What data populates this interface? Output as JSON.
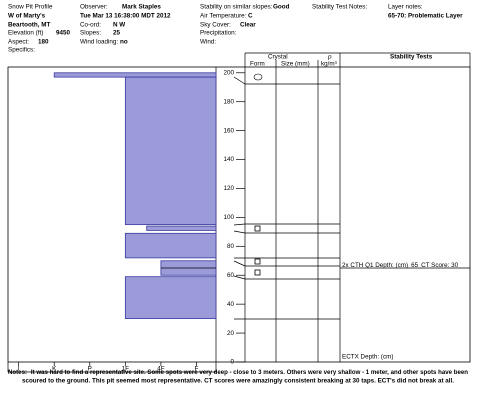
{
  "header": {
    "title": "Snow Pit Profile",
    "location": "W of Marty's",
    "region": "Beartooth, MT",
    "elevation": {
      "label": "Elevation (ft)",
      "value": "9450"
    },
    "aspect": {
      "label": "Aspect:",
      "value": "180"
    },
    "specifics": "Specifics:",
    "observer": {
      "label": "Observer:",
      "value": "Mark Staples"
    },
    "date": "Tue Mar 13 16:38:00 MDT 2012",
    "coord": {
      "label": "Co-ord:",
      "value": "N W"
    },
    "slopes": {
      "label": "Slopes:",
      "value": "25"
    },
    "wind_loading": {
      "label": "Wind loading:",
      "value": "no"
    },
    "stability": {
      "label": "Stability on similar slopes:",
      "value": "Good"
    },
    "air_temp": {
      "label": "Air Temperature:",
      "value": "C"
    },
    "sky": {
      "label": "Sky Cover:",
      "value": "Clear"
    },
    "precipitation": "Precipitation:",
    "wind": "Wind:",
    "stability_notes": "Stability Test Notes:",
    "layer_notes": "Layer notes:",
    "layer_note": "65-70: Problematic Layer"
  },
  "chart_data": {
    "type": "snow-profile",
    "color": "#9b9bd9",
    "highlight_color": "#e02020",
    "layers": [
      {
        "top": 200,
        "bottom": 197,
        "hardness": 5
      },
      {
        "top": 197,
        "bottom": 95,
        "hardness": 3
      },
      {
        "top": 94,
        "bottom": 91,
        "hardness": 2.4
      },
      {
        "top": 89,
        "bottom": 72,
        "hardness": 3
      },
      {
        "top": 70,
        "bottom": 60,
        "hardness": 2
      },
      {
        "top": 59,
        "bottom": 30,
        "hardness": 3
      }
    ],
    "xlim": [
      6.3,
      0.45
    ],
    "xticks": [
      {
        "value": 6,
        "label": "I"
      },
      {
        "value": 5,
        "label": "K"
      },
      {
        "value": 4,
        "label": "P"
      },
      {
        "value": 3,
        "label": "1F"
      },
      {
        "value": 2,
        "label": "4F"
      },
      {
        "value": 1,
        "label": "F"
      }
    ],
    "ylim": [
      0,
      204
    ],
    "yticks": [
      0,
      20,
      40,
      60,
      80,
      100,
      120,
      140,
      160,
      180,
      200
    ]
  },
  "columns": {
    "crystal": "Crystal",
    "form": "Form",
    "size": "Size (mm)",
    "density": "ρ",
    "density_unit": "kg/m³",
    "stability": "Stability Tests"
  },
  "tests": [
    {
      "text": "2x CTH Q1 Depth: (cm)",
      "depth": 65,
      "score": "CT Score: 30"
    },
    {
      "text": "ECTX  Depth: (cm)"
    }
  ],
  "notes": {
    "label": "Notes:",
    "lines": [
      "It was hard to find a representative site.  Some spots were very deep - close to 3 meters.  Others were very shallow - 1 meter, and other spots have been",
      "scoured to the ground.  This pit seemed most representative.  CT scores were amazingly consistent breaking at 30 taps.  ECT's did not break at all."
    ]
  }
}
